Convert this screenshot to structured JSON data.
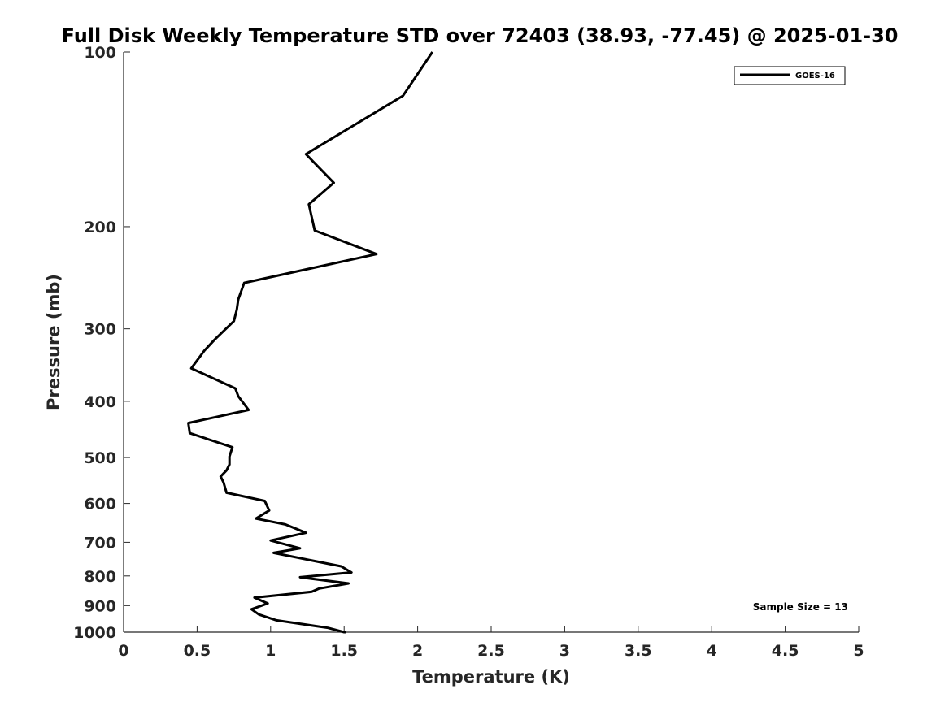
{
  "chart_data": {
    "type": "line",
    "title": "Full Disk Weekly Temperature STD over 72403 (38.93, -77.45) @ 2025-01-30",
    "xlabel": "Temperature (K)",
    "ylabel": "Pressure (mb)",
    "xlim": [
      0,
      5
    ],
    "ylim": [
      1000,
      100
    ],
    "yscale": "log",
    "y_reversed": true,
    "grid": false,
    "legend_position": "top-right",
    "x_ticks": [
      "0",
      "0.5",
      "1",
      "1.5",
      "2",
      "2.5",
      "3",
      "3.5",
      "4",
      "4.5",
      "5"
    ],
    "y_ticks": [
      "100",
      "200",
      "300",
      "400",
      "500",
      "600",
      "700",
      "800",
      "900",
      "1000"
    ],
    "series": [
      {
        "name": "GOES-16",
        "color": "#000000",
        "x": [
          2.1,
          1.9,
          1.24,
          1.43,
          1.26,
          1.3,
          1.72,
          0.82,
          0.78,
          0.77,
          0.75,
          0.62,
          0.55,
          0.46,
          0.76,
          0.78,
          0.85,
          0.44,
          0.45,
          0.74,
          0.72,
          0.72,
          0.7,
          0.66,
          0.68,
          0.7,
          0.96,
          0.99,
          0.9,
          1.1,
          1.24,
          1.0,
          1.2,
          1.02,
          1.48,
          1.55,
          1.2,
          1.53,
          1.33,
          1.28,
          0.89,
          0.98,
          0.87,
          0.92,
          1.04,
          1.39,
          1.5,
          1.51
        ],
        "y": [
          100,
          119,
          150,
          168,
          183,
          203,
          223,
          250,
          267,
          278,
          291,
          313,
          327,
          351,
          380,
          392,
          414,
          436,
          454,
          480,
          498,
          514,
          526,
          539,
          552,
          575,
          594,
          617,
          637,
          652,
          674,
          695,
          717,
          730,
          770,
          789,
          804,
          824,
          841,
          852,
          872,
          892,
          913,
          932,
          954,
          983,
          1001,
          1016
        ]
      }
    ],
    "annotations": [
      "Sample Size = 13"
    ]
  }
}
